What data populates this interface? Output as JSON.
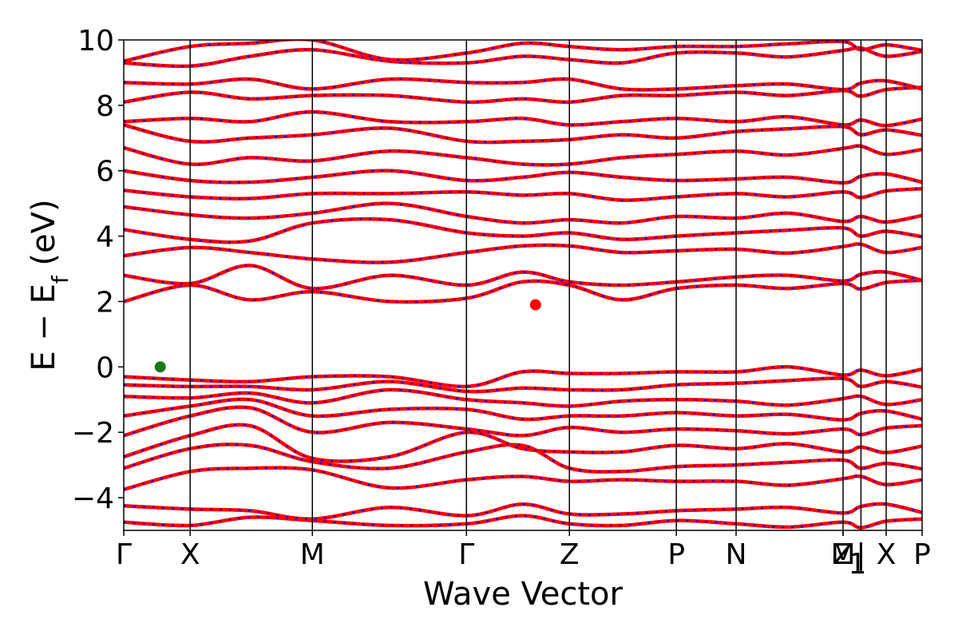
{
  "chart_data": {
    "type": "line",
    "title": "",
    "xlabel": "Wave Vector",
    "ylabel": "E − E",
    "ylabel_subscript": "f",
    "ylabel_unit": "(eV)",
    "ylim": [
      -5,
      10
    ],
    "yticks": [
      -4,
      -2,
      0,
      2,
      4,
      6,
      8,
      10
    ],
    "ytick_labels": [
      "−4",
      "−2",
      "0",
      "2",
      "4",
      "6",
      "8",
      "10"
    ],
    "xlim": [
      0,
      12.02
    ],
    "high_symmetry_points": [
      {
        "label": "Γ",
        "x": 0.0
      },
      {
        "label": "X",
        "x": 1.0
      },
      {
        "label": "M",
        "x": 2.84
      },
      {
        "label": "Γ",
        "x": 5.16
      },
      {
        "label": "Z",
        "x": 6.71
      },
      {
        "label": "P",
        "x": 8.32
      },
      {
        "label": "N",
        "x": 9.22
      },
      {
        "label": "Z",
        "x": 10.83
      },
      {
        "label": "M",
        "x": 10.83
      },
      {
        "label": "1",
        "x": 10.83
      },
      {
        "label": "|",
        "x": 11.1
      },
      {
        "label": "X",
        "x": 11.48
      },
      {
        "label": "P",
        "x": 12.02
      }
    ],
    "series_styles": [
      {
        "color": "#ff0000",
        "dash": "solid"
      },
      {
        "color": "#0000ff",
        "dash": "dotted"
      }
    ],
    "bands": [
      [
        -4.75,
        -4.85,
        -4.6,
        -4.7,
        -4.85,
        -4.8,
        -4.55,
        -4.8,
        -4.85,
        -4.7,
        -4.8
      ],
      [
        -4.25,
        -4.35,
        -4.4,
        -4.65,
        -4.3,
        -4.55,
        -4.2,
        -4.5,
        -4.5,
        -4.4,
        -4.35
      ],
      [
        -3.75,
        -3.2,
        -3.1,
        -3.15,
        -3.7,
        -3.45,
        -3.35,
        -3.5,
        -3.45,
        -3.5,
        -3.5
      ],
      [
        -3.1,
        -2.5,
        -2.4,
        -2.9,
        -3.1,
        -2.6,
        -2.4,
        -3.1,
        -3.2,
        -3.05,
        -3.0
      ],
      [
        -2.75,
        -2.1,
        -1.8,
        -2.8,
        -2.75,
        -2.0,
        -2.5,
        -2.6,
        -2.6,
        -2.4,
        -2.5
      ],
      [
        -2.1,
        -1.5,
        -1.25,
        -2.0,
        -1.7,
        -1.9,
        -2.1,
        -1.85,
        -2.0,
        -1.9,
        -1.95
      ],
      [
        -1.5,
        -1.2,
        -1.0,
        -1.5,
        -1.3,
        -1.3,
        -1.6,
        -1.5,
        -1.5,
        -1.4,
        -1.5
      ],
      [
        -0.9,
        -0.95,
        -0.8,
        -1.1,
        -0.7,
        -1.0,
        -1.1,
        -1.2,
        -1.05,
        -1.0,
        -1.05
      ],
      [
        -0.55,
        -0.6,
        -0.6,
        -0.7,
        -0.45,
        -0.75,
        -0.65,
        -0.7,
        -0.7,
        -0.55,
        -0.5
      ],
      [
        -0.3,
        -0.4,
        -0.45,
        -0.3,
        -0.3,
        -0.6,
        -0.15,
        -0.2,
        -0.2,
        -0.15,
        -0.15
      ],
      [
        2.0,
        2.5,
        2.05,
        2.3,
        2.0,
        2.1,
        2.6,
        2.5,
        2.05,
        2.4,
        2.5
      ],
      [
        2.8,
        2.55,
        3.1,
        2.4,
        2.8,
        2.5,
        2.9,
        2.6,
        2.5,
        2.6,
        2.75
      ],
      [
        3.4,
        3.65,
        3.5,
        3.3,
        3.2,
        3.5,
        3.7,
        3.7,
        3.5,
        3.55,
        3.6
      ],
      [
        4.2,
        3.9,
        3.85,
        4.4,
        4.5,
        4.1,
        4.0,
        4.1,
        3.9,
        4.0,
        4.1
      ],
      [
        4.9,
        4.65,
        4.55,
        4.7,
        5.0,
        4.6,
        4.4,
        4.5,
        4.4,
        4.6,
        4.55
      ],
      [
        5.4,
        5.2,
        5.15,
        5.3,
        5.3,
        5.35,
        5.25,
        5.3,
        5.1,
        5.2,
        5.3
      ],
      [
        6.0,
        5.7,
        5.65,
        5.8,
        6.0,
        5.7,
        5.8,
        5.95,
        5.8,
        5.7,
        5.75
      ],
      [
        6.7,
        6.2,
        6.4,
        6.3,
        6.6,
        6.4,
        6.2,
        6.2,
        6.4,
        6.5,
        6.6
      ],
      [
        7.4,
        6.9,
        7.0,
        7.1,
        7.3,
        6.9,
        6.9,
        6.95,
        7.1,
        7.0,
        7.2
      ],
      [
        7.5,
        7.6,
        7.5,
        7.8,
        7.5,
        7.5,
        7.6,
        7.4,
        7.5,
        7.6,
        7.5
      ],
      [
        8.1,
        8.4,
        8.2,
        8.3,
        8.3,
        8.1,
        8.2,
        8.1,
        8.3,
        8.3,
        8.4
      ],
      [
        8.7,
        8.65,
        8.8,
        8.5,
        8.8,
        8.7,
        8.7,
        8.8,
        8.5,
        8.5,
        8.6
      ],
      [
        9.3,
        9.2,
        9.5,
        9.7,
        9.35,
        9.3,
        9.5,
        9.4,
        9.3,
        9.6,
        9.6
      ],
      [
        9.35,
        9.8,
        9.9,
        10.0,
        9.4,
        9.6,
        9.9,
        9.8,
        9.7,
        9.8,
        9.8
      ]
    ],
    "band_x": [
      0.0,
      1.0,
      1.9,
      2.84,
      4.0,
      5.16,
      6.0,
      6.71,
      7.5,
      8.32,
      9.22
    ],
    "tail_segment": {
      "x": [
        9.22,
        10.0,
        10.83,
        11.1,
        11.48,
        12.02
      ],
      "note_source_index": 10
    },
    "vbm_marker": {
      "x": 0.55,
      "y": 0.0,
      "color": "#1a7a1a"
    },
    "cbm_marker": {
      "x": 6.2,
      "y": 1.9,
      "color": "#ff0000"
    },
    "grid": false
  }
}
